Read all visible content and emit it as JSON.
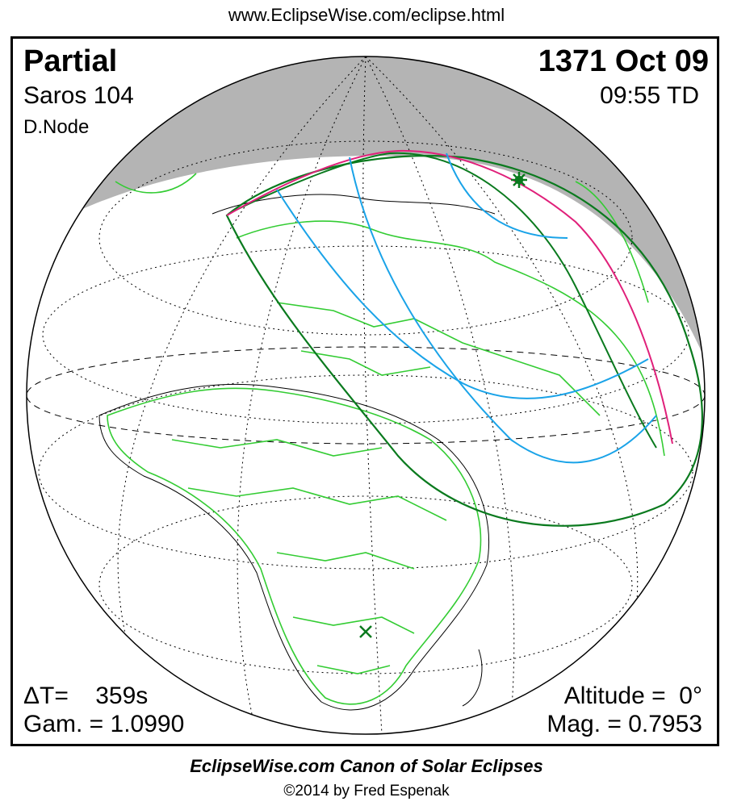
{
  "header": {
    "url": "www.EclipseWise.com/eclipse.html"
  },
  "eclipse": {
    "type": "Partial",
    "date": "1371 Oct 09",
    "saros": "Saros 104",
    "time": "09:55 TD",
    "node": "D.Node",
    "delta_t": "ΔT=    359s",
    "gamma": "Gam. = 1.0990",
    "altitude": "Altitude =  0°",
    "magnitude": "Mag. = 0.7953"
  },
  "footer": {
    "canon": "EclipseWise.com Canon of Solar Eclipses",
    "copyright": "©2014 by Fred Espenak"
  },
  "map": {
    "colors": {
      "night": "#b4b4b4",
      "land": "#33cc33",
      "coast": "#000000",
      "grid": "#000000",
      "penumbra_limit": "#0a7a1e",
      "max_eclipse_line": "#e0207a",
      "magnitude_contour": "#1aa3e8",
      "marker": "#0a7a1e"
    },
    "markers": {
      "greatest_eclipse": "star-marker",
      "subsolar_point": "x-marker"
    }
  }
}
